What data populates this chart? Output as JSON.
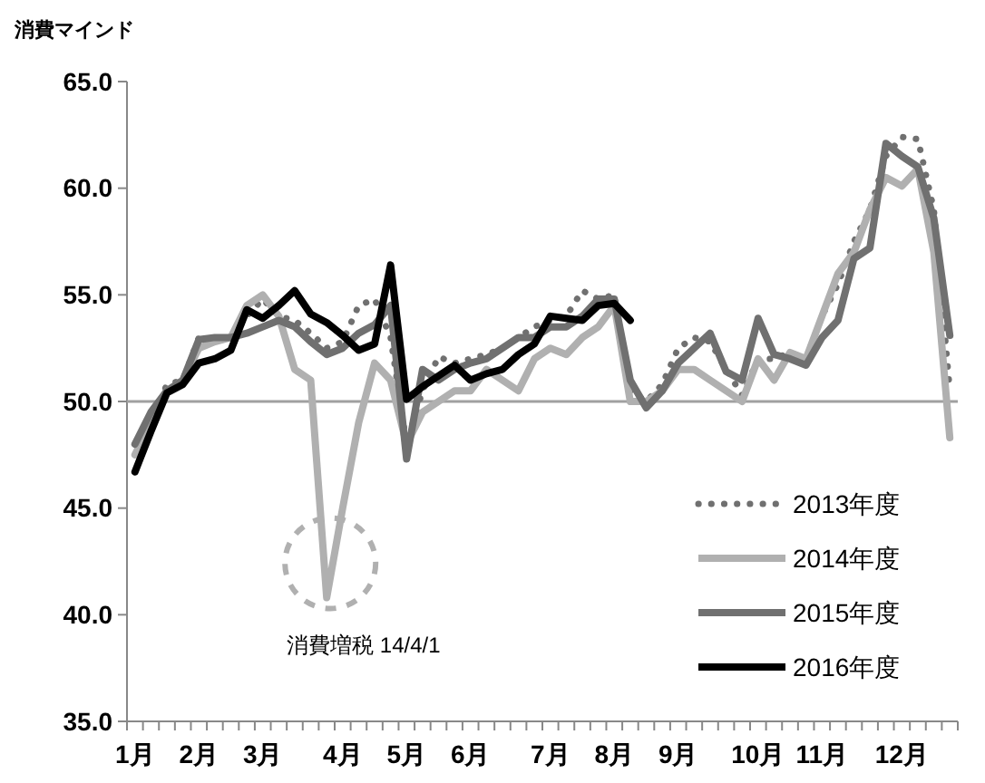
{
  "chart_data": {
    "type": "line",
    "ylabel": "消費マインド",
    "categories": [
      "1月",
      null,
      null,
      null,
      "2月",
      null,
      null,
      null,
      "3月",
      null,
      null,
      null,
      null,
      "4月",
      null,
      null,
      null,
      "5月",
      null,
      null,
      null,
      "6月",
      null,
      null,
      null,
      null,
      "7月",
      null,
      null,
      null,
      "8月",
      null,
      null,
      null,
      "9月",
      null,
      null,
      null,
      null,
      "10月",
      null,
      null,
      null,
      "11月",
      null,
      null,
      null,
      null,
      "12月",
      null,
      null,
      null
    ],
    "series": [
      {
        "name": "2013年度",
        "color": "#707070",
        "line_style": "dotted",
        "values": [
          48.0,
          49.0,
          50.8,
          51.0,
          53.0,
          52.8,
          53.0,
          54.0,
          54.8,
          54.0,
          53.8,
          53.2,
          52.5,
          52.8,
          54.5,
          54.8,
          53.0,
          48.0,
          50.5,
          52.1,
          51.8,
          52.0,
          52.2,
          52.5,
          53.0,
          53.5,
          53.8,
          54.0,
          55.2,
          54.8,
          55.0,
          50.5,
          50.0,
          50.8,
          52.5,
          53.0,
          52.8,
          51.5,
          50.3,
          52.0,
          52.0,
          52.3,
          52.0,
          54.0,
          55.5,
          57.5,
          59.0,
          61.5,
          62.4,
          62.3,
          59.0,
          50.5
        ]
      },
      {
        "name": "2014年度",
        "color": "#b0b0b0",
        "line_style": "solid",
        "values": [
          47.5,
          49.0,
          50.5,
          51.0,
          52.5,
          52.8,
          53.0,
          54.5,
          55.0,
          54.0,
          51.5,
          51.0,
          40.8,
          45.0,
          49.0,
          51.8,
          51.0,
          48.0,
          49.5,
          50.0,
          50.5,
          50.5,
          51.5,
          51.0,
          50.5,
          52.0,
          52.5,
          52.2,
          53.0,
          53.5,
          54.5,
          50.0,
          50.0,
          50.5,
          51.5,
          51.5,
          51.0,
          50.5,
          50.0,
          52.0,
          51.0,
          52.3,
          52.0,
          54.0,
          56.0,
          57.0,
          59.0,
          60.5,
          60.1,
          60.9,
          57.0,
          48.3
        ]
      },
      {
        "name": "2015年度",
        "color": "#707070",
        "line_style": "solid",
        "values": [
          48.0,
          49.5,
          50.5,
          51.0,
          52.9,
          53.0,
          53.0,
          53.2,
          53.5,
          53.8,
          53.5,
          52.8,
          52.2,
          52.5,
          53.2,
          53.6,
          54.5,
          47.3,
          51.5,
          51.0,
          51.5,
          51.8,
          52.0,
          52.5,
          53.0,
          53.0,
          53.5,
          53.5,
          54.0,
          54.8,
          54.8,
          51.0,
          49.7,
          50.5,
          51.8,
          52.5,
          53.2,
          51.4,
          51.0,
          53.9,
          52.2,
          52.0,
          51.7,
          53.0,
          53.8,
          56.7,
          57.2,
          62.1,
          61.5,
          61.0,
          58.6,
          53.1
        ]
      },
      {
        "name": "2016年度",
        "color": "#000000",
        "line_style": "solid",
        "values": [
          46.7,
          48.6,
          50.4,
          50.8,
          51.8,
          52.0,
          52.4,
          54.3,
          53.9,
          54.5,
          55.2,
          54.1,
          53.7,
          53.1,
          52.4,
          52.7,
          56.4,
          50.1,
          50.7,
          51.2,
          51.7,
          51.0,
          51.3,
          51.5,
          52.2,
          52.7,
          54.0,
          53.9,
          53.8,
          54.5,
          54.6,
          53.8,
          null,
          null,
          null,
          null,
          null,
          null,
          null,
          null,
          null,
          null,
          null,
          null,
          null,
          null,
          null,
          null,
          null,
          null,
          null,
          null
        ]
      }
    ],
    "ylim": [
      35,
      65
    ],
    "yticks": [
      {
        "value": 35,
        "label": "35.0"
      },
      {
        "value": 40,
        "label": "40.0"
      },
      {
        "value": 45,
        "label": "45.0"
      },
      {
        "value": 50,
        "label": "50.0"
      },
      {
        "value": 55,
        "label": "55.0"
      },
      {
        "value": 60,
        "label": "60.0"
      },
      {
        "value": 65,
        "label": "65.0"
      }
    ],
    "ref_lines": [
      {
        "axis": "y",
        "value": 50,
        "color": "#a0a0a0"
      }
    ],
    "annotations": [
      "消費増税 14/4/1"
    ],
    "legend": "bottom right",
    "grid": false
  }
}
